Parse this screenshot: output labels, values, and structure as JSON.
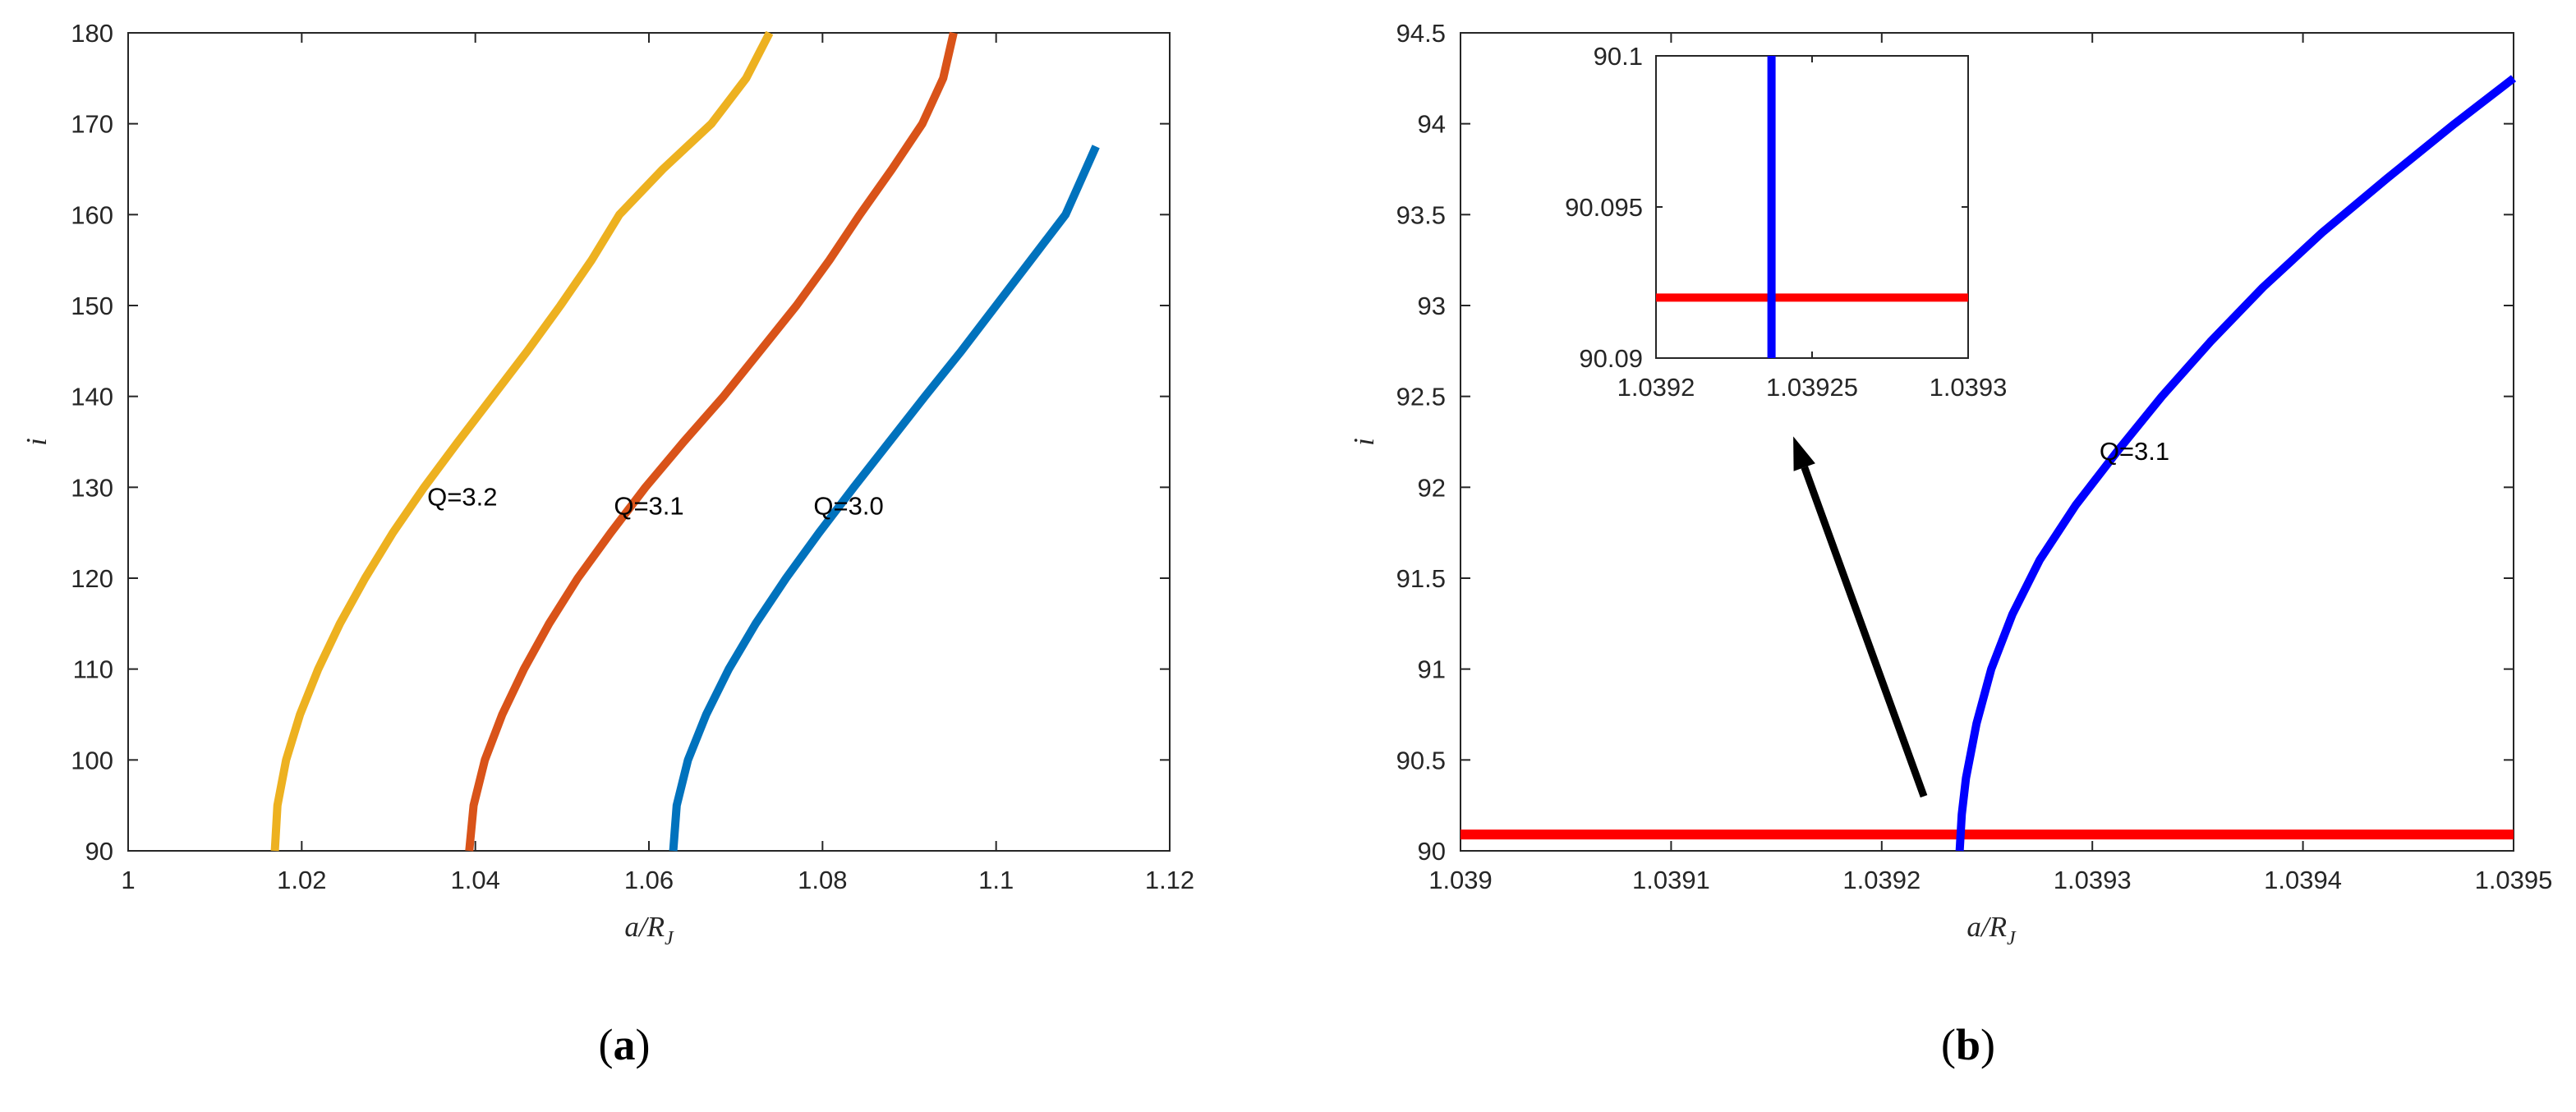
{
  "chart_data": [
    {
      "type": "line",
      "panel_label": [
        "(",
        "a",
        ")"
      ],
      "xlabel": "a/R",
      "xlabel_sub": "J",
      "ylabel": "i",
      "xlim": [
        1,
        1.12
      ],
      "ylim": [
        90,
        180
      ],
      "x_ticks": [
        "1",
        "1.02",
        "1.04",
        "1.06",
        "1.08",
        "1.1",
        "1.12"
      ],
      "y_ticks": [
        "90",
        "100",
        "110",
        "120",
        "130",
        "140",
        "150",
        "160",
        "170",
        "180"
      ],
      "grid": false,
      "series": [
        {
          "name": "Q=3.2",
          "color": "#EDB120",
          "label_at": [
            1.0385,
            128
          ],
          "points": [
            [
              1.0169,
              90
            ],
            [
              1.0172,
              95
            ],
            [
              1.0182,
              100
            ],
            [
              1.0198,
              105
            ],
            [
              1.0219,
              110
            ],
            [
              1.0244,
              115
            ],
            [
              1.0273,
              120
            ],
            [
              1.0305,
              125
            ],
            [
              1.0341,
              130
            ],
            [
              1.038,
              135
            ],
            [
              1.042,
              140
            ],
            [
              1.046,
              145
            ],
            [
              1.0498,
              150
            ],
            [
              1.0534,
              155
            ],
            [
              1.0566,
              160
            ],
            [
              1.0616,
              165
            ],
            [
              1.0672,
              170
            ],
            [
              1.0712,
              175
            ],
            [
              1.0739,
              180
            ]
          ]
        },
        {
          "name": "Q=3.1",
          "color": "#D95319",
          "label_at": [
            1.06,
            127
          ],
          "points": [
            [
              1.0393,
              90
            ],
            [
              1.0398,
              95
            ],
            [
              1.0411,
              100
            ],
            [
              1.0431,
              105
            ],
            [
              1.0456,
              110
            ],
            [
              1.0485,
              115
            ],
            [
              1.0518,
              120
            ],
            [
              1.0556,
              125
            ],
            [
              1.0596,
              130
            ],
            [
              1.064,
              135
            ],
            [
              1.0686,
              140
            ],
            [
              1.0728,
              145
            ],
            [
              1.077,
              150
            ],
            [
              1.0808,
              155
            ],
            [
              1.0843,
              160
            ],
            [
              1.088,
              165
            ],
            [
              1.0915,
              170
            ],
            [
              1.0939,
              175
            ],
            [
              1.0951,
              180
            ]
          ]
        },
        {
          "name": "Q=3.0",
          "color": "#0072BD",
          "label_at": [
            1.083,
            127
          ],
          "points": [
            [
              1.0628,
              90
            ],
            [
              1.0632,
              95
            ],
            [
              1.0645,
              100
            ],
            [
              1.0666,
              105
            ],
            [
              1.0692,
              110
            ],
            [
              1.0723,
              115
            ],
            [
              1.0758,
              120
            ],
            [
              1.0796,
              125
            ],
            [
              1.0836,
              130
            ],
            [
              1.0877,
              135
            ],
            [
              1.0918,
              140
            ],
            [
              1.096,
              145
            ],
            [
              1.1,
              150
            ],
            [
              1.104,
              155
            ],
            [
              1.108,
              160
            ],
            [
              1.1115,
              167.5
            ]
          ]
        }
      ]
    },
    {
      "type": "line",
      "panel_label": [
        "(",
        "b",
        ")"
      ],
      "xlabel": "a/R",
      "xlabel_sub": "J",
      "ylabel": "i",
      "xlim": [
        1.039,
        1.0395
      ],
      "ylim": [
        90,
        94.5
      ],
      "x_ticks": [
        "1.039",
        "1.0391",
        "1.0392",
        "1.0393",
        "1.0394",
        "1.0395"
      ],
      "y_ticks": [
        "90",
        "90.5",
        "91",
        "91.5",
        "92",
        "92.5",
        "93",
        "93.5",
        "94",
        "94.5"
      ],
      "grid": false,
      "series": [
        {
          "name": "",
          "color": "#FF0000",
          "points": [
            [
              1.039,
              90.09
            ],
            [
              1.0395,
              90.09
            ]
          ]
        },
        {
          "name": "Q=3.1",
          "color": "#0000FF",
          "label_at": [
            1.03932,
            92.15
          ],
          "points": [
            [
              1.039237,
              90.0
            ],
            [
              1.039238,
              90.2
            ],
            [
              1.03924,
              90.4
            ],
            [
              1.039245,
              90.7
            ],
            [
              1.039252,
              91.0
            ],
            [
              1.039262,
              91.3
            ],
            [
              1.039275,
              91.6
            ],
            [
              1.039292,
              91.9
            ],
            [
              1.039312,
              92.2
            ],
            [
              1.039333,
              92.5
            ],
            [
              1.039356,
              92.8
            ],
            [
              1.039381,
              93.1
            ],
            [
              1.039409,
              93.4
            ],
            [
              1.03944,
              93.7
            ],
            [
              1.039472,
              94.0
            ],
            [
              1.0395,
              94.25
            ]
          ]
        }
      ],
      "arrow": {
        "from": [
          1.03922,
          90.3
        ],
        "to": [
          1.039158,
          92.28
        ]
      },
      "inset": {
        "xlim": [
          1.0392,
          1.0393
        ],
        "ylim": [
          90.09,
          90.1
        ],
        "x_ticks": [
          "1.0392",
          "1.03925",
          "1.0393"
        ],
        "y_ticks": [
          "90.09",
          "90.095",
          "90.1"
        ],
        "red_y": 90.092,
        "blue_x": 1.039237
      }
    }
  ]
}
